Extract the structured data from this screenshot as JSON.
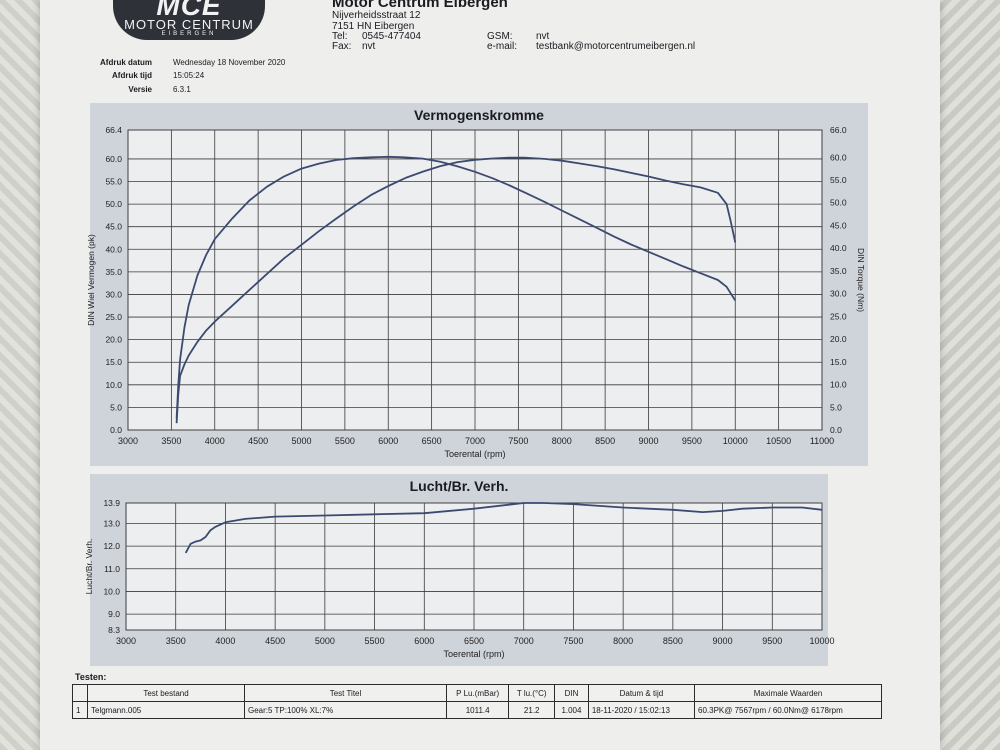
{
  "header": {
    "logo_mark": "MCE",
    "logo_name": "MOTOR CENTRUM",
    "logo_sub": "EIBERGEN",
    "company": "Motor Centrum Eibergen",
    "street": "Nijverheidsstraat 12",
    "city": "7151 HN Eibergen",
    "tel_label": "Tel:",
    "tel": "0545-477404",
    "fax_label": "Fax:",
    "fax": "nvt",
    "gsm_label": "GSM:",
    "gsm": "nvt",
    "email_label": "e-mail:",
    "email": "testbank@motorcentrumeibergen.nl"
  },
  "meta": {
    "date_label": "Afdruk datum",
    "date": "Wednesday 18 November 2020",
    "time_label": "Afdruk tijd",
    "time": "15:05:24",
    "version_label": "Versie",
    "version": "6.3.1"
  },
  "chart_data": [
    {
      "type": "line",
      "title": "Vermogenskromme",
      "xlabel": "Toerental (rpm)",
      "ylabel": "DIN Wiel Vermogen (pk)",
      "y2label": "DIN Torque (Nm)",
      "xlim": [
        3000,
        11000
      ],
      "ylim": [
        0,
        66.4
      ],
      "y2lim": [
        0,
        66.0
      ],
      "xticks": [
        3000,
        3500,
        4000,
        4500,
        5000,
        5500,
        6000,
        6500,
        7000,
        7500,
        8000,
        8500,
        9000,
        9500,
        10000,
        10500,
        11000
      ],
      "yticks": [
        0,
        5,
        10,
        15,
        20,
        25,
        30,
        35,
        40,
        45,
        50,
        55,
        60,
        66.4
      ],
      "yticklabels": [
        "0.0",
        "5.0",
        "10.0",
        "15.0",
        "20.0",
        "25.0",
        "30.0",
        "35.0",
        "40.0",
        "45.0",
        "50.0",
        "55.0",
        "60.0",
        "66.4"
      ],
      "y2ticks": [
        0,
        5,
        10,
        15,
        20,
        25,
        30,
        35,
        40,
        45,
        50,
        55,
        60,
        66
      ],
      "y2ticklabels": [
        "0.0",
        "5.0",
        "10.0",
        "15.0",
        "20.0",
        "25.0",
        "30.0",
        "35.0",
        "40.0",
        "45.0",
        "50.0",
        "55.0",
        "60.0",
        "66.0"
      ],
      "grid": true,
      "line_color": "#3c4a70",
      "series": [
        {
          "axis": "left",
          "x": [
            3560,
            3580,
            3600,
            3650,
            3700,
            3800,
            3900,
            4000,
            4200,
            4400,
            4600,
            4800,
            5000,
            5200,
            5400,
            5600,
            5800,
            6000,
            6200,
            6400,
            6600,
            6800,
            7000,
            7200,
            7400,
            7567,
            7800,
            8000,
            8200,
            8400,
            8600,
            8800,
            9000,
            9200,
            9400,
            9600,
            9800,
            9900,
            9950,
            10000
          ],
          "y": [
            1.5,
            8.0,
            12.0,
            14.5,
            16.5,
            19.5,
            22.0,
            24.0,
            27.5,
            31.0,
            34.5,
            38.0,
            41.0,
            44.0,
            46.8,
            49.5,
            52.0,
            54.0,
            55.8,
            57.2,
            58.4,
            59.3,
            59.8,
            60.1,
            60.3,
            60.3,
            60.0,
            59.6,
            59.0,
            58.4,
            57.7,
            56.9,
            56.1,
            55.2,
            54.4,
            53.7,
            52.5,
            50.0,
            46.0,
            41.5
          ]
        },
        {
          "axis": "right",
          "x": [
            3560,
            3580,
            3600,
            3650,
            3700,
            3800,
            3900,
            4000,
            4200,
            4400,
            4600,
            4800,
            5000,
            5200,
            5400,
            5600,
            5800,
            6000,
            6178,
            6400,
            6600,
            6800,
            7000,
            7200,
            7400,
            7600,
            7800,
            8000,
            8200,
            8400,
            8600,
            8800,
            9000,
            9200,
            9400,
            9600,
            9800,
            9900,
            9950,
            10000
          ],
          "y": [
            2.5,
            10.0,
            15.5,
            22.5,
            27.5,
            34.0,
            38.5,
            42.0,
            46.5,
            50.5,
            53.5,
            55.8,
            57.5,
            58.6,
            59.4,
            59.8,
            60.0,
            60.1,
            60.0,
            59.7,
            59.0,
            58.0,
            56.8,
            55.4,
            53.8,
            52.0,
            50.2,
            48.3,
            46.4,
            44.5,
            42.6,
            40.8,
            39.2,
            37.6,
            36.0,
            34.5,
            33.0,
            31.5,
            30.0,
            28.5
          ]
        }
      ]
    },
    {
      "type": "line",
      "title": "Lucht/Br. Verh.",
      "xlabel": "Toerental (rpm)",
      "ylabel": "Lucht/Br. Verh.",
      "xlim": [
        3000,
        10000
      ],
      "ylim": [
        8.3,
        13.9
      ],
      "xticks": [
        3000,
        3500,
        4000,
        4500,
        5000,
        5500,
        6000,
        6500,
        7000,
        7500,
        8000,
        8500,
        9000,
        9500,
        10000
      ],
      "yticks": [
        8.3,
        9.0,
        10.0,
        11.0,
        12.0,
        13.0,
        13.9
      ],
      "yticklabels": [
        "8.3",
        "9.0",
        "10.0",
        "11.0",
        "12.0",
        "13.0",
        "13.9"
      ],
      "grid": true,
      "line_color": "#3c4a70",
      "series": [
        {
          "x": [
            3600,
            3650,
            3700,
            3750,
            3800,
            3850,
            3900,
            4000,
            4200,
            4500,
            5000,
            5500,
            6000,
            6500,
            7000,
            7200,
            7500,
            8000,
            8500,
            8800,
            9000,
            9200,
            9500,
            9800,
            10000
          ],
          "y": [
            11.7,
            12.1,
            12.2,
            12.25,
            12.4,
            12.7,
            12.85,
            13.05,
            13.2,
            13.3,
            13.35,
            13.4,
            13.45,
            13.65,
            13.9,
            13.9,
            13.85,
            13.7,
            13.6,
            13.5,
            13.55,
            13.65,
            13.7,
            13.7,
            13.6
          ]
        }
      ]
    }
  ],
  "tests": {
    "title": "Testen:",
    "headers": [
      "",
      "Test bestand",
      "Test Titel",
      "P Lu.(mBar)",
      "T lu.(°C)",
      "DIN",
      "Datum & tijd",
      "Maximale Waarden"
    ],
    "rows": [
      [
        "1",
        "Telgmann.005",
        "Gear:5 TP:100% XL:7%",
        "1011.4",
        "21.2",
        "1.004",
        "18-11-2020 / 15:02:13",
        "60.3PK@ 7567rpm / 60.0Nm@ 6178rpm"
      ]
    ]
  }
}
